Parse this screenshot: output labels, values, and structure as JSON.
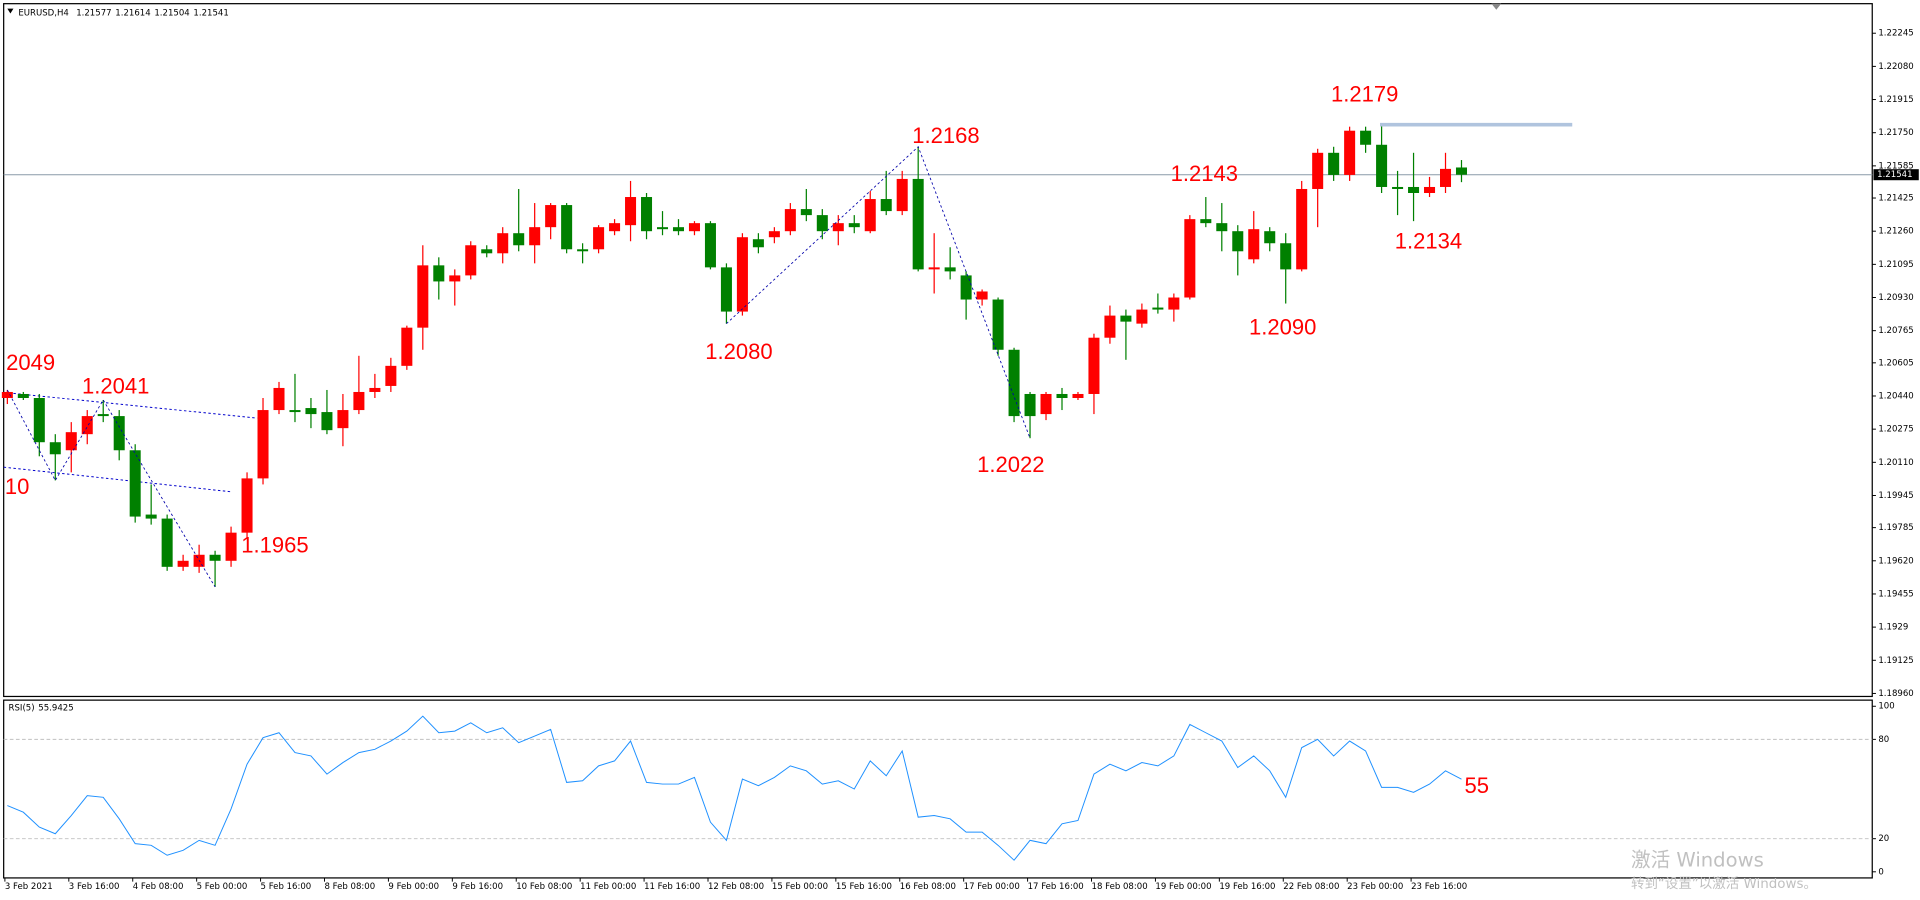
{
  "chart_data": [
    {
      "type": "candlestick",
      "title": "EURUSD,H4",
      "categories": [
        "3 Feb 2021",
        null,
        null,
        null,
        "3 Feb 16:00",
        null,
        null,
        null,
        "4 Feb 08:00",
        null,
        null,
        null,
        "5 Feb 00:00",
        null,
        null,
        null,
        "5 Feb 16:00",
        null,
        null,
        null,
        "8 Feb 08:00",
        null,
        null,
        null,
        "9 Feb 00:00",
        null,
        null,
        null,
        "9 Feb 16:00",
        null,
        null,
        null,
        "10 Feb 08:00",
        null,
        null,
        null,
        "11 Feb 00:00",
        null,
        null,
        null,
        "11 Feb 16:00",
        null,
        null,
        null,
        "12 Feb 08:00",
        null,
        null,
        null,
        "15 Feb 00:00",
        null,
        null,
        null,
        "15 Feb 16:00",
        null,
        null,
        null,
        "16 Feb 08:00",
        null,
        null,
        null,
        "17 Feb 00:00",
        null,
        null,
        null,
        "17 Feb 16:00",
        null,
        null,
        null,
        "18 Feb 08:00",
        null,
        null,
        null,
        "19 Feb 00:00",
        null,
        null,
        null,
        "19 Feb 16:00",
        null,
        null,
        null,
        "22 Feb 08:00",
        null,
        null,
        null,
        "23 Feb 00:00",
        null,
        null,
        null,
        "23 Feb 16:00",
        null,
        null,
        null
      ],
      "open": [
        1.2043,
        1.2045,
        1.2043,
        1.2021,
        1.2017,
        1.2025,
        1.2035,
        1.2034,
        1.2017,
        1.1985,
        1.1983,
        1.1959,
        1.1959,
        1.1965,
        1.1962,
        1.1976,
        1.2003,
        1.2037,
        1.2037,
        1.2038,
        1.2036,
        1.2028,
        1.2037,
        1.2046,
        1.2049,
        1.2059,
        1.2078,
        1.2109,
        1.2101,
        1.2104,
        1.2117,
        1.2115,
        1.2125,
        1.2119,
        1.2128,
        1.2139,
        1.2117,
        1.2117,
        1.2126,
        1.2129,
        1.2143,
        1.2128,
        1.2128,
        1.2126,
        1.213,
        1.2108,
        1.2086,
        1.2122,
        1.2123,
        1.2126,
        1.2137,
        1.2134,
        1.2126,
        1.213,
        1.2126,
        1.2142,
        1.2136,
        1.2152,
        1.2107,
        1.2108,
        1.2104,
        1.2092,
        1.2092,
        1.2067,
        1.2045,
        1.2035,
        1.2045,
        1.2043,
        1.2045,
        1.2073,
        1.2084,
        1.208,
        1.2088,
        1.2087,
        1.2093,
        1.2132,
        1.213,
        1.2126,
        1.2112,
        1.2126,
        1.212,
        1.2107,
        1.2147,
        1.2165,
        1.2154,
        1.2176,
        1.2169,
        1.2148,
        1.2148,
        1.2145,
        1.2148,
        1.21577
      ],
      "high": [
        1.2047,
        1.2046,
        1.2045,
        1.2025,
        1.2031,
        1.2037,
        1.2042,
        1.2037,
        1.202,
        1.2,
        1.1985,
        1.1965,
        1.197,
        1.1967,
        1.1979,
        1.2006,
        1.2043,
        1.2051,
        1.2055,
        1.2043,
        1.2047,
        1.2045,
        1.2064,
        1.2055,
        1.2063,
        1.2079,
        1.2119,
        1.2113,
        1.2107,
        1.2121,
        1.2119,
        1.2128,
        1.2147,
        1.214,
        1.214,
        1.214,
        1.212,
        1.2129,
        1.2132,
        1.2151,
        1.2145,
        1.2136,
        1.2132,
        1.2131,
        1.2131,
        1.211,
        1.2125,
        1.2125,
        1.2128,
        1.214,
        1.2147,
        1.2137,
        1.2134,
        1.2134,
        1.2146,
        1.2156,
        1.2156,
        1.2168,
        1.2125,
        1.2118,
        1.2106,
        1.2097,
        1.2093,
        1.2068,
        1.2046,
        1.2046,
        1.2048,
        1.2046,
        1.2075,
        1.2089,
        1.2087,
        1.209,
        1.2095,
        1.2095,
        1.2134,
        1.2143,
        1.214,
        1.2129,
        1.2136,
        1.2128,
        1.2125,
        1.2151,
        1.2167,
        1.2168,
        1.2178,
        1.2178,
        1.2179,
        1.2156,
        1.2165,
        1.2153,
        1.2165,
        1.21614
      ],
      "low": [
        1.204,
        1.2042,
        1.2014,
        1.2002,
        1.2006,
        1.202,
        1.2031,
        1.2012,
        1.1981,
        1.198,
        1.1957,
        1.1957,
        1.1956,
        1.1949,
        1.1959,
        1.1973,
        1.2,
        1.2035,
        1.2031,
        1.2028,
        1.2025,
        1.2019,
        1.2035,
        1.2043,
        1.2046,
        1.2057,
        1.2067,
        1.2092,
        1.2089,
        1.2102,
        1.2113,
        1.211,
        1.2116,
        1.211,
        1.2122,
        1.2115,
        1.211,
        1.2115,
        1.2124,
        1.2121,
        1.2122,
        1.2124,
        1.2124,
        1.2124,
        1.2107,
        1.208,
        1.2084,
        1.2115,
        1.212,
        1.2124,
        1.2131,
        1.2122,
        1.2119,
        1.2125,
        1.2125,
        1.2134,
        1.2134,
        1.2106,
        1.2095,
        1.2102,
        1.2082,
        1.2089,
        1.2064,
        1.2031,
        1.2023,
        1.2032,
        1.2037,
        1.2042,
        1.2035,
        1.207,
        1.2062,
        1.2078,
        1.2085,
        1.2081,
        1.2092,
        1.2128,
        1.2116,
        1.2104,
        1.211,
        1.2116,
        1.209,
        1.2106,
        1.2128,
        1.2151,
        1.2151,
        1.2165,
        1.2145,
        1.2134,
        1.2131,
        1.2143,
        1.2145,
        1.21504
      ],
      "close": [
        1.2046,
        1.2043,
        1.2021,
        1.2015,
        1.2026,
        1.2034,
        1.2034,
        1.2017,
        1.1984,
        1.1983,
        1.1959,
        1.1962,
        1.1965,
        1.1962,
        1.1976,
        1.2003,
        1.2037,
        1.2048,
        1.2036,
        1.2035,
        1.2027,
        1.2037,
        1.2046,
        1.2048,
        1.2059,
        1.2078,
        1.2109,
        1.2101,
        1.2104,
        1.2119,
        1.2115,
        1.2125,
        1.2119,
        1.2128,
        1.2139,
        1.2117,
        1.2116,
        1.2128,
        1.213,
        1.2143,
        1.2126,
        1.2127,
        1.2126,
        1.213,
        1.2108,
        1.2086,
        1.2123,
        1.2118,
        1.2126,
        1.2137,
        1.2134,
        1.2126,
        1.213,
        1.2128,
        1.2142,
        1.2136,
        1.2152,
        1.2107,
        1.2108,
        1.2106,
        1.2092,
        1.2096,
        1.2067,
        1.2034,
        1.2034,
        1.2045,
        1.2043,
        1.2045,
        1.2073,
        1.2084,
        1.2081,
        1.2087,
        1.2087,
        1.2093,
        1.2132,
        1.213,
        1.2126,
        1.2116,
        1.2127,
        1.212,
        1.2107,
        1.2147,
        1.2165,
        1.2154,
        1.2176,
        1.2169,
        1.2148,
        1.2147,
        1.2145,
        1.2148,
        1.2157,
        1.21541
      ],
      "up_color": "#ff0000",
      "down_color": "#008000",
      "ylim": [
        1.18945,
        1.22392
      ],
      "yticks": [
        1.22245,
        {
          "value": 1.2208,
          "label": "1.22080"
        },
        1.21915,
        {
          "value": 1.2175,
          "label": "1.21750"
        },
        1.21585,
        1.21425,
        {
          "value": 1.2126,
          "label": "1.21260"
        },
        1.21095,
        {
          "value": 1.2093,
          "label": "1.20930"
        },
        1.20765,
        1.20605,
        {
          "value": 1.2044,
          "label": "1.20440"
        },
        1.20275,
        {
          "value": 1.2011,
          "label": "1.20110"
        },
        1.19945,
        1.19785,
        {
          "value": 1.1962,
          "label": "1.19620"
        },
        1.19455,
        1.1929,
        1.19125,
        {
          "value": 1.1896,
          "label": "1.18960"
        }
      ],
      "annotations": [
        {
          "text": "2049"
        },
        {
          "text": "1.2041"
        },
        {
          "text": "10"
        },
        {
          "text": "1.1965"
        },
        {
          "text": "1.2080"
        },
        {
          "text": "1.2168"
        },
        {
          "text": "1.2022"
        },
        {
          "text": "1.2143"
        },
        {
          "text": "1.2090"
        },
        {
          "text": "1.2179"
        },
        {
          "text": "1.2134"
        }
      ],
      "current_price_line": true
    },
    {
      "type": "line",
      "title": "RSI(5)",
      "color": "#1e90ff",
      "values": [
        40,
        36,
        27,
        23,
        34,
        46,
        45,
        32,
        17,
        16,
        10,
        13,
        19,
        16,
        38,
        65,
        81,
        84,
        72,
        70,
        59,
        66,
        72,
        74,
        79,
        85,
        94,
        84,
        85,
        90,
        84,
        87,
        78,
        82,
        86,
        54,
        55,
        64,
        67,
        79,
        54,
        53,
        53,
        57,
        30,
        19,
        56,
        52,
        57,
        64,
        61,
        53,
        55,
        50,
        67,
        58,
        73,
        33,
        34,
        32,
        24,
        24,
        16,
        7,
        19,
        17,
        29,
        31,
        59,
        65,
        61,
        66,
        64,
        70,
        89,
        84,
        79,
        63,
        70,
        61,
        45,
        75,
        80,
        70,
        79,
        73,
        51,
        51,
        48,
        53,
        61,
        55.9425
      ],
      "ylim": [
        -3.7,
        103.7
      ],
      "yticks": [
        0,
        20,
        80,
        100
      ],
      "levels": [
        20,
        80
      ],
      "annotations": [
        {
          "text": "55"
        }
      ]
    }
  ],
  "watermark": [
    "激活 Windows",
    "转到“设置”以激活 Windows。"
  ]
}
